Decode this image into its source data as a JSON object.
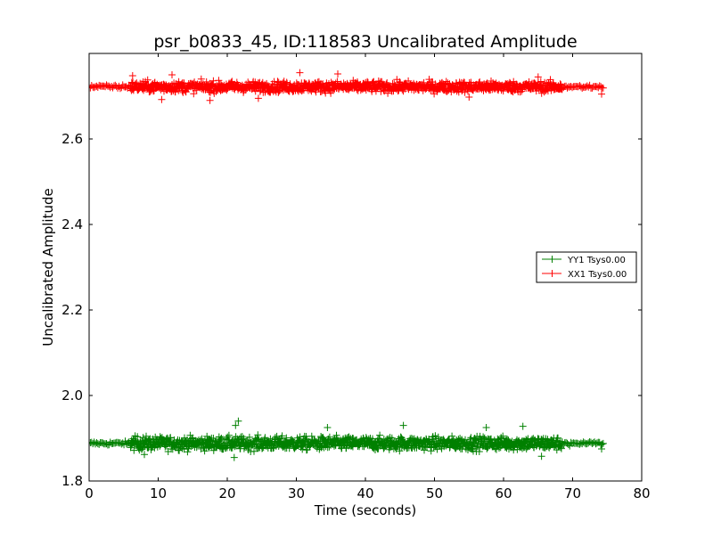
{
  "chart_data": {
    "type": "scatter",
    "title": "psr_b0833_45, ID:118583 Uncalibrated Amplitude",
    "xlabel": "Time (seconds)",
    "ylabel": "Uncalibrated Amplitude",
    "xlim": [
      0,
      80
    ],
    "ylim": [
      1.8,
      2.8
    ],
    "xticks": [
      0,
      10,
      20,
      30,
      40,
      50,
      60,
      70,
      80
    ],
    "yticks": [
      1.8,
      2.0,
      2.2,
      2.4,
      2.6
    ],
    "xtick_labels": [
      "0",
      "10",
      "20",
      "30",
      "40",
      "50",
      "60",
      "70",
      "80"
    ],
    "ytick_labels": [
      "1.8",
      "2.0",
      "2.2",
      "2.4",
      "2.6"
    ],
    "grid": false,
    "legend_position": "right",
    "series": [
      {
        "name": "YY1 Tsys0.00",
        "color": "#008000",
        "marker": "plus",
        "x_range": [
          0,
          74.5
        ],
        "y_mean": 1.888,
        "quiet_segments": [
          [
            0,
            6
          ],
          [
            68.5,
            74.5
          ]
        ],
        "noisy_segment": [
          6,
          68.5
        ],
        "quiet_spread": 0.004,
        "noisy_spread": 0.015,
        "outliers": [
          [
            21.6,
            1.94
          ],
          [
            21.2,
            1.93
          ],
          [
            62.8,
            1.928
          ],
          [
            57.5,
            1.925
          ],
          [
            45.5,
            1.93
          ],
          [
            34.5,
            1.925
          ],
          [
            21.0,
            1.855
          ],
          [
            65.5,
            1.858
          ],
          [
            8.0,
            1.862
          ],
          [
            74.2,
            1.875
          ]
        ]
      },
      {
        "name": "XX1 Tsys0.00",
        "color": "#ff0000",
        "marker": "plus",
        "x_range": [
          0,
          74.5
        ],
        "y_mean": 2.722,
        "quiet_segments": [
          [
            0,
            6
          ],
          [
            68.5,
            74.5
          ]
        ],
        "noisy_segment": [
          6,
          68.5
        ],
        "quiet_spread": 0.004,
        "noisy_spread": 0.012,
        "outliers": [
          [
            30.5,
            2.755
          ],
          [
            36.0,
            2.752
          ],
          [
            12.0,
            2.75
          ],
          [
            6.3,
            2.748
          ],
          [
            17.5,
            2.69
          ],
          [
            10.5,
            2.692
          ],
          [
            24.5,
            2.695
          ],
          [
            55.0,
            2.698
          ],
          [
            65.0,
            2.745
          ],
          [
            74.2,
            2.705
          ]
        ]
      }
    ]
  }
}
